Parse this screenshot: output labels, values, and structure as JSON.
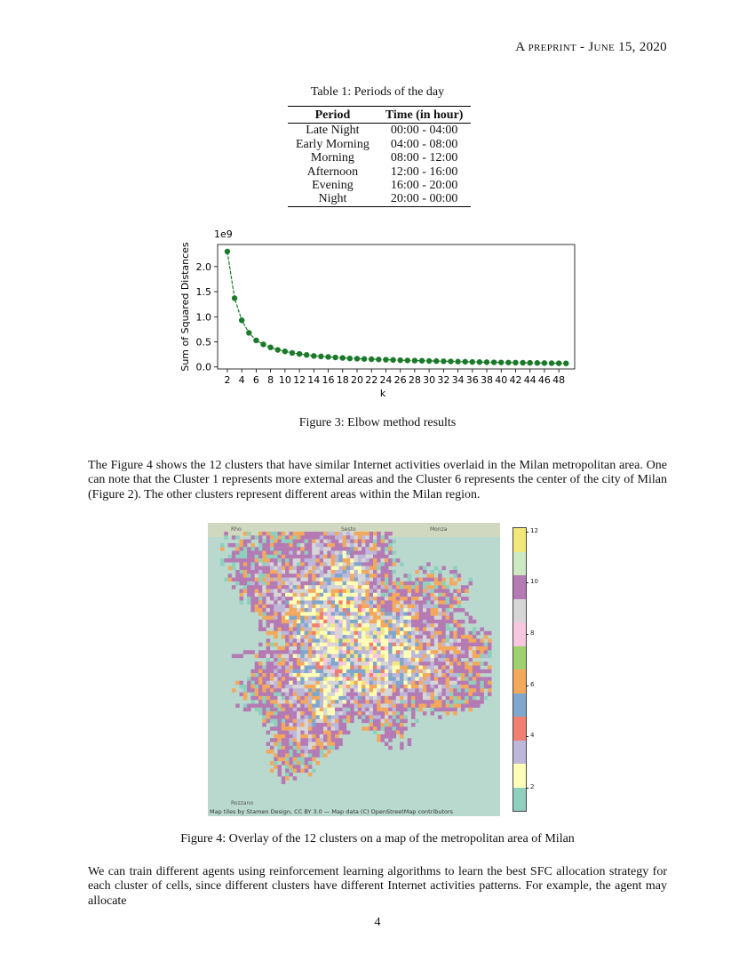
{
  "header": {
    "prefix": "A",
    "small_caps": "preprint",
    "sep": " - ",
    "date": "June 15, 2020"
  },
  "table": {
    "caption": "Table 1: Periods of the day",
    "columns": [
      "Period",
      "Time (in hour)"
    ],
    "rows": [
      [
        "Late Night",
        "00:00 - 04:00"
      ],
      [
        "Early Morning",
        "04:00 - 08:00"
      ],
      [
        "Morning",
        "08:00 - 12:00"
      ],
      [
        "Afternoon",
        "12:00 - 16:00"
      ],
      [
        "Evening",
        "16:00 - 20:00"
      ],
      [
        "Night",
        "20:00 - 00:00"
      ]
    ]
  },
  "chart_data": {
    "type": "line",
    "title": "",
    "xlabel": "k",
    "ylabel": "Sum of Squared Distances",
    "y_multiplier": "1e9",
    "x": [
      2,
      3,
      4,
      5,
      6,
      7,
      8,
      9,
      10,
      11,
      12,
      13,
      14,
      15,
      16,
      17,
      18,
      19,
      20,
      21,
      22,
      23,
      24,
      25,
      26,
      27,
      28,
      29,
      30,
      31,
      32,
      33,
      34,
      35,
      36,
      37,
      38,
      39,
      40,
      41,
      42,
      43,
      44,
      45,
      46,
      47,
      48,
      49
    ],
    "values": [
      2.3,
      1.37,
      0.93,
      0.68,
      0.53,
      0.45,
      0.39,
      0.34,
      0.31,
      0.28,
      0.26,
      0.24,
      0.22,
      0.21,
      0.2,
      0.19,
      0.18,
      0.17,
      0.165,
      0.16,
      0.155,
      0.15,
      0.145,
      0.14,
      0.135,
      0.13,
      0.127,
      0.124,
      0.12,
      0.117,
      0.114,
      0.11,
      0.107,
      0.104,
      0.1,
      0.098,
      0.095,
      0.092,
      0.09,
      0.088,
      0.086,
      0.084,
      0.082,
      0.08,
      0.078,
      0.076,
      0.074,
      0.072
    ],
    "xticks": [
      2,
      4,
      6,
      8,
      10,
      12,
      14,
      16,
      18,
      20,
      22,
      24,
      26,
      28,
      30,
      32,
      34,
      36,
      38,
      40,
      42,
      44,
      46,
      48
    ],
    "yticks": [
      "0.0",
      "0.5",
      "1.0",
      "1.5",
      "2.0"
    ],
    "xlim": [
      0.65,
      50.2
    ],
    "ylim": [
      -0.04,
      2.44
    ],
    "grid": false,
    "color": "#1a7a2a"
  },
  "fig3_caption": "Figure 3: Elbow method results",
  "para1": "The Figure 4 shows the 12 clusters that have similar Internet activities overlaid in the Milan metropolitan area. One can note that the Cluster 1 represents more external areas and the Cluster 6 represents the center of the city of Milan (Figure 2). The other clusters represent different areas within the Milan region.",
  "map": {
    "attribution": "Map tiles by Stamen Design, CC BY 3.0 — Map data (C) OpenStreetMap contributors",
    "labels": [
      "Rho",
      "Sesto",
      "Monza",
      "Rozzano"
    ],
    "colorbar_ticks": [
      "12",
      "10",
      "8",
      "6",
      "4",
      "2"
    ],
    "colorbar_colors": [
      "#f2e87a",
      "#cde9c4",
      "#b57ab3",
      "#d6d6d6",
      "#f7c6df",
      "#9fd26e",
      "#f4a85c",
      "#7fa6cc",
      "#f07f6f",
      "#bdb7da",
      "#ffffb8",
      "#8fcfbe"
    ],
    "palette": [
      "#8fcfbe",
      "#ffffb8",
      "#bdb7da",
      "#f07f6f",
      "#7fa6cc",
      "#f4a85c",
      "#9fd26e",
      "#f7c6df",
      "#d6d6d6",
      "#b57ab3",
      "#cde9c4",
      "#f2e87a"
    ]
  },
  "fig4_caption": "Figure 4: Overlay of the 12 clusters on a map of the metropolitan area of Milan",
  "para2": "We can train different agents using reinforcement learning algorithms to learn the best SFC allocation strategy for each cluster of cells, since different clusters have different Internet activities patterns. For example, the agent may allocate",
  "page_number": "4"
}
